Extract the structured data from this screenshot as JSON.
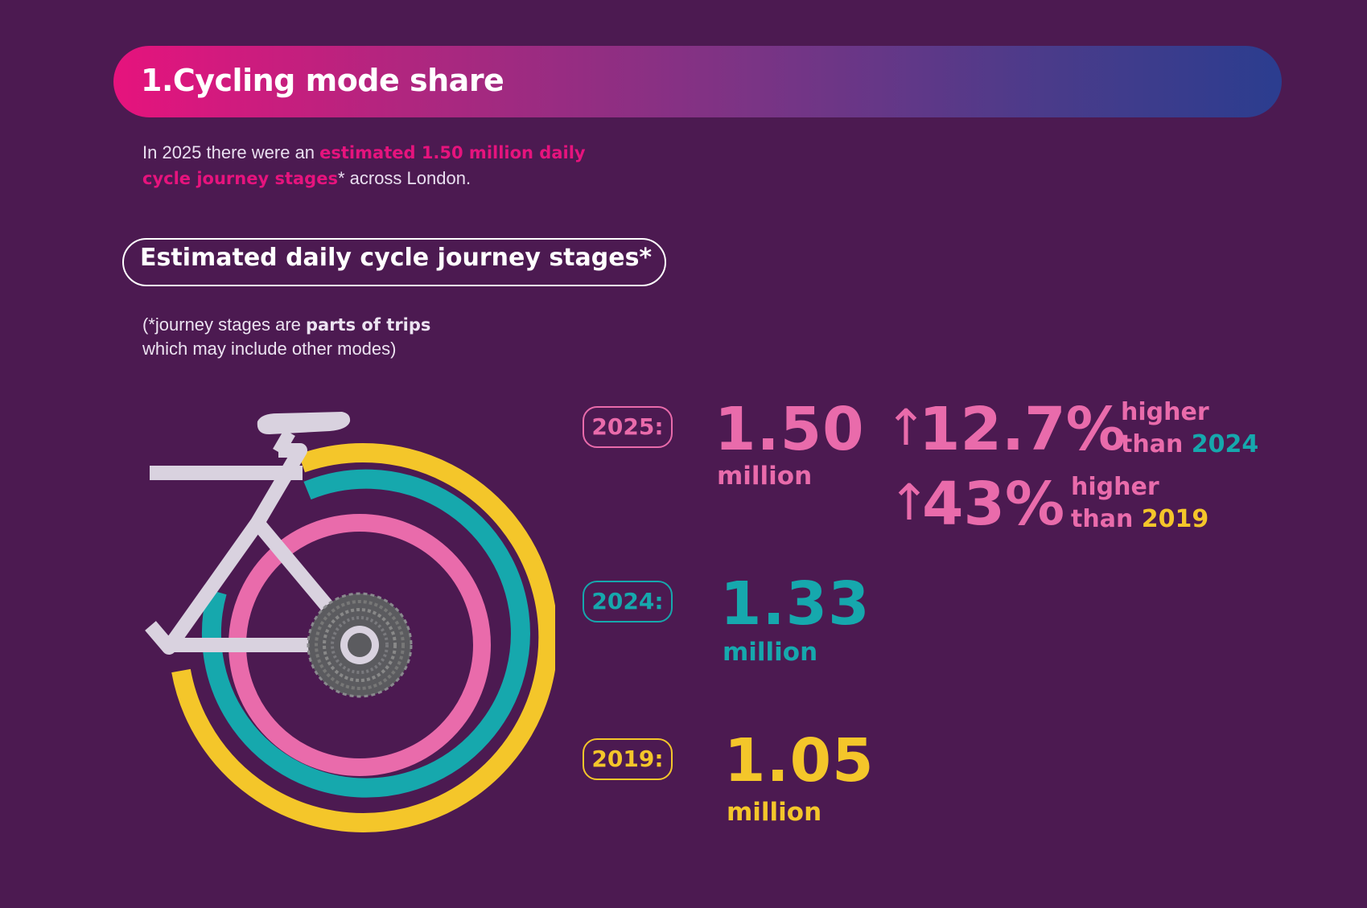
{
  "header": {
    "title": "1.Cycling mode share"
  },
  "intro": {
    "prefix": "In 2025 there were an ",
    "highlight_line1": "estimated 1.50 million daily",
    "highlight_line2": "cycle journey stages",
    "suffix": "* across London."
  },
  "subtitle": "Estimated daily cycle journey stages*",
  "note": {
    "prefix": "(*journey stages are ",
    "bold": "parts of trips",
    "line2": "which may include other modes)"
  },
  "colors": {
    "pink": "#e96bab",
    "teal": "#16a8ad",
    "yellow": "#f4c62a",
    "frame": "#d9d2df",
    "background": "#4c1a51"
  },
  "years": [
    {
      "label": "2025:",
      "value": "1.50",
      "unit": "million",
      "color": "#e96bab"
    },
    {
      "label": "2024:",
      "value": "1.33",
      "unit": "million",
      "color": "#16a8ad"
    },
    {
      "label": "2019:",
      "value": "1.05",
      "unit": "million",
      "color": "#f4c62a"
    }
  ],
  "comparisons": [
    {
      "arrow": "↑",
      "percent": "12.7%",
      "word": "higher",
      "than": "than",
      "year": "2024",
      "year_color": "#16a8ad"
    },
    {
      "arrow": "↑",
      "percent": "43%",
      "word": "higher",
      "than": "than",
      "year": "2019",
      "year_color": "#f4c62a"
    }
  ]
}
